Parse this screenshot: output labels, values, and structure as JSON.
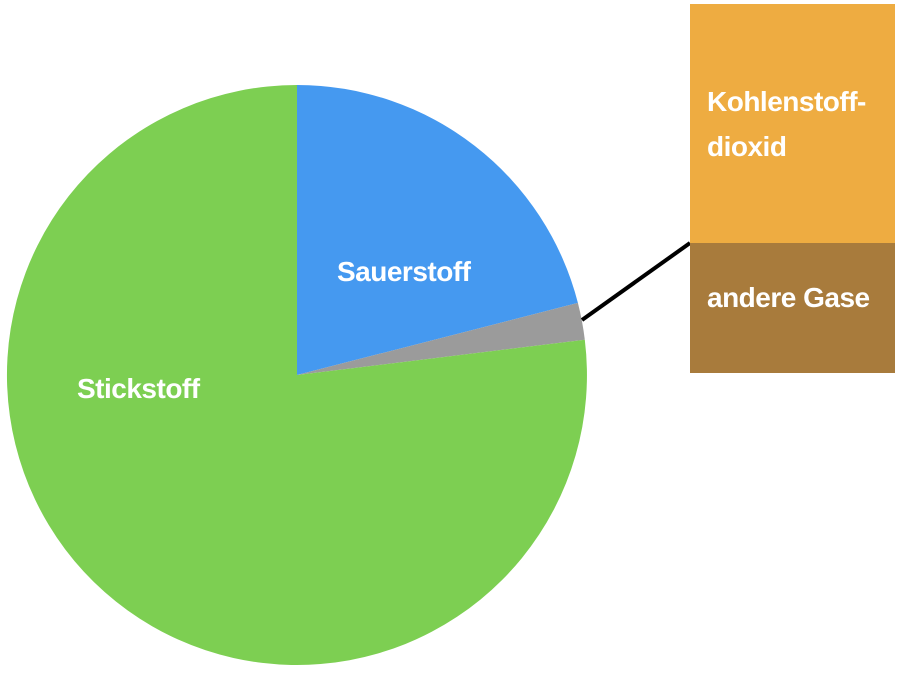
{
  "colors": {
    "background": "#FFFFFF",
    "nitrogen_green": "#7DCF52",
    "oxygen_blue": "#4599F0",
    "other_gray": "#9B9B9B",
    "co2_orange": "#EEAC41",
    "other_brown": "#A87B3C",
    "label_white": "#FFFFFF",
    "connector_black": "#000000"
  },
  "chart_data": {
    "type": "pie",
    "title": "",
    "legend_position": "none",
    "unit": "%",
    "segments": [
      {
        "id": "sauerstoff",
        "label": "Sauerstoff",
        "value_pct": 21,
        "drawn_start_deg": 0,
        "drawn_end_deg": 75.6,
        "color": "#4599F0",
        "label_inside": true
      },
      {
        "id": "andere-gase",
        "label": "andere Gase + Kohlenstoffdioxid",
        "value_pct": 1,
        "drawn_start_deg": 75.6,
        "drawn_end_deg": 83,
        "color": "#9B9B9B",
        "label_inside": false
      },
      {
        "id": "stickstoff",
        "label": "Stickstoff",
        "value_pct": 78,
        "drawn_start_deg": 83,
        "drawn_end_deg": 360,
        "color": "#7DCF52",
        "label_inside": true
      }
    ]
  },
  "callout": {
    "connector_color": "#000000",
    "boxes": [
      {
        "id": "kohlenstoffdioxid",
        "line1": "Kohlenstoff-",
        "line2": "dioxid",
        "color": "#EEAC41",
        "text_color": "#FFFFFF"
      },
      {
        "id": "andere-gase",
        "label": "andere Gase",
        "color": "#A87B3C",
        "text_color": "#FFFFFF"
      }
    ]
  }
}
